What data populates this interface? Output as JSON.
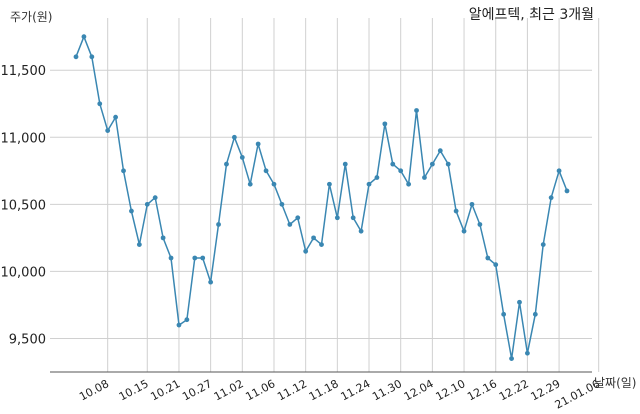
{
  "chart_data": {
    "type": "line",
    "title": "알에프텍, 최근 3개월",
    "ylabel": "주가(원)",
    "xlabel": "날짜(일)",
    "ylim": [
      9250,
      11800
    ],
    "yticks": [
      9500,
      10000,
      10500,
      11000,
      11500
    ],
    "ytick_labels": [
      "9,500",
      "10,000",
      "10,500",
      "11,000",
      "11,500"
    ],
    "xtick_labels": [
      "10.08",
      "10.15",
      "10.21",
      "10.27",
      "11.02",
      "11.06",
      "11.12",
      "11.18",
      "11.24",
      "11.30",
      "12.04",
      "12.10",
      "12.16",
      "12.22",
      "12.29",
      "21.01.06"
    ],
    "xtick_index": [
      4,
      9,
      13,
      17,
      21,
      25,
      29,
      33,
      37,
      41,
      45,
      49,
      53,
      57,
      61,
      66
    ],
    "grid": true,
    "line_color": "#3a87b2",
    "series": [
      {
        "values": [
          11600,
          11750,
          11600,
          11250,
          11050,
          11150,
          10750,
          10450,
          10200,
          10500,
          10550,
          10250,
          10100,
          9600,
          9640,
          10100,
          10100,
          9920,
          10350,
          10800,
          11000,
          10850,
          10650,
          10950,
          10750,
          10650,
          10500,
          10350,
          10400,
          10150,
          10250,
          10200,
          10650,
          10400,
          10800,
          10400,
          10300,
          10650,
          10700,
          11100,
          10800,
          10750,
          10650,
          11200,
          10700,
          10800,
          10900,
          10800,
          10450,
          10300,
          10500,
          10350,
          10100,
          10050,
          9680,
          9350,
          9770,
          9390,
          9680,
          10200,
          10550,
          10750,
          10600
        ]
      }
    ]
  }
}
